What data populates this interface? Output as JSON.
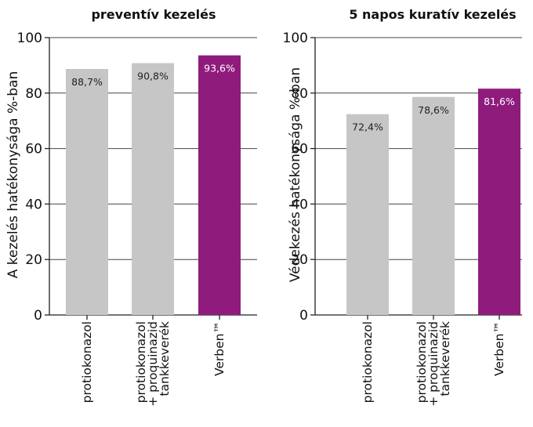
{
  "chart_data": [
    {
      "type": "bar",
      "title": "preventív kezelés",
      "ylabel": "A kezelés hatékonysága %-ban",
      "ylim": [
        0,
        100
      ],
      "yticks": [
        0,
        20,
        40,
        60,
        80,
        100
      ],
      "grid": true,
      "categories": [
        [
          "protiokonazol"
        ],
        [
          "protiokonazol",
          "+ proquinazid",
          "tankkeverék"
        ],
        [
          "Verben™"
        ]
      ],
      "values": [
        88.7,
        90.8,
        93.6
      ],
      "value_labels": [
        "88,7%",
        "90,8%",
        "93,6%"
      ],
      "colors": [
        "#c6c6c6",
        "#c6c6c6",
        "#8f1c7d"
      ],
      "label_colors": [
        "#222222",
        "#222222",
        "#ffffff"
      ]
    },
    {
      "type": "bar",
      "title": "5 napos kuratív kezelés",
      "ylabel": "Védekezés hatékonysága %-ban",
      "ylim": [
        0,
        100
      ],
      "yticks": [
        0,
        20,
        40,
        60,
        80,
        100
      ],
      "grid": true,
      "categories": [
        [
          "protiokonazol"
        ],
        [
          "protiokonazol",
          "+ proquinazid",
          "tankkeverék"
        ],
        [
          "Verben™"
        ]
      ],
      "values": [
        72.4,
        78.6,
        81.6
      ],
      "value_labels": [
        "72,4%",
        "78,6%",
        "81,6%"
      ],
      "colors": [
        "#c6c6c6",
        "#c6c6c6",
        "#8f1c7d"
      ],
      "label_colors": [
        "#222222",
        "#222222",
        "#ffffff"
      ]
    }
  ]
}
